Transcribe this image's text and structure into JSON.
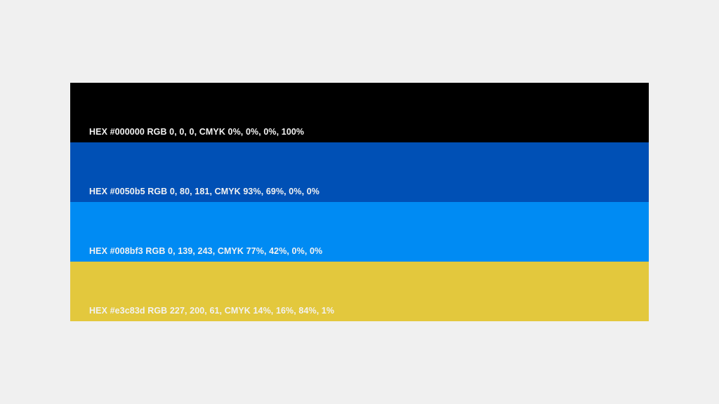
{
  "background": "#f0f0f0",
  "swatches": [
    {
      "color": "#000000",
      "label": "HEX #000000 RGB 0, 0, 0, CMYK 0%, 0%, 0%, 100%"
    },
    {
      "color": "#0050b5",
      "label": "HEX #0050b5 RGB 0, 80, 181, CMYK 93%, 69%, 0%, 0%"
    },
    {
      "color": "#008bf3",
      "label": "HEX #008bf3 RGB 0, 139, 243, CMYK 77%, 42%, 0%, 0%"
    },
    {
      "color": "#e3c83d",
      "label": "HEX #e3c83d RGB 227, 200, 61, CMYK 14%, 16%, 84%, 1%"
    }
  ]
}
